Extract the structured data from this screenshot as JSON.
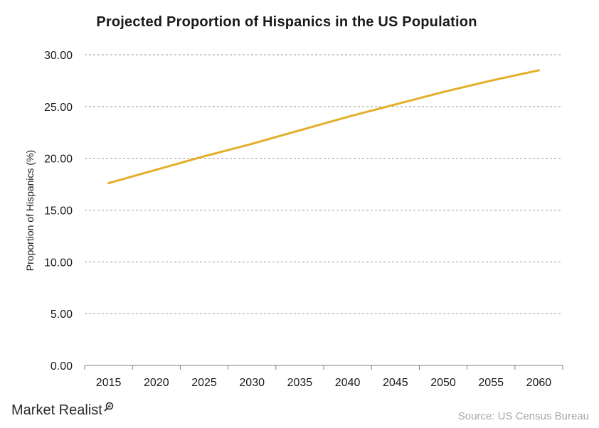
{
  "chart_data": {
    "type": "line",
    "title": "Projected Proportion of Hispanics in the US Population",
    "xlabel": "",
    "ylabel": "Proportion of Hispanics (%)",
    "categories": [
      "2015",
      "2020",
      "2025",
      "2030",
      "2035",
      "2040",
      "2045",
      "2050",
      "2055",
      "2060"
    ],
    "series": [
      {
        "name": "",
        "values": [
          17.6,
          18.9,
          20.2,
          21.4,
          22.7,
          24.0,
          25.2,
          26.4,
          27.5,
          28.5
        ],
        "color": "#E3AE2A"
      }
    ],
    "ylim": [
      0,
      30
    ],
    "yticks": [
      "0.00",
      "5.00",
      "10.00",
      "15.00",
      "20.00",
      "25.00",
      "30.00"
    ],
    "grid": true,
    "legend": "none"
  },
  "footer": {
    "brand": "Market Realist",
    "source": "Source: US Census Bureau"
  }
}
